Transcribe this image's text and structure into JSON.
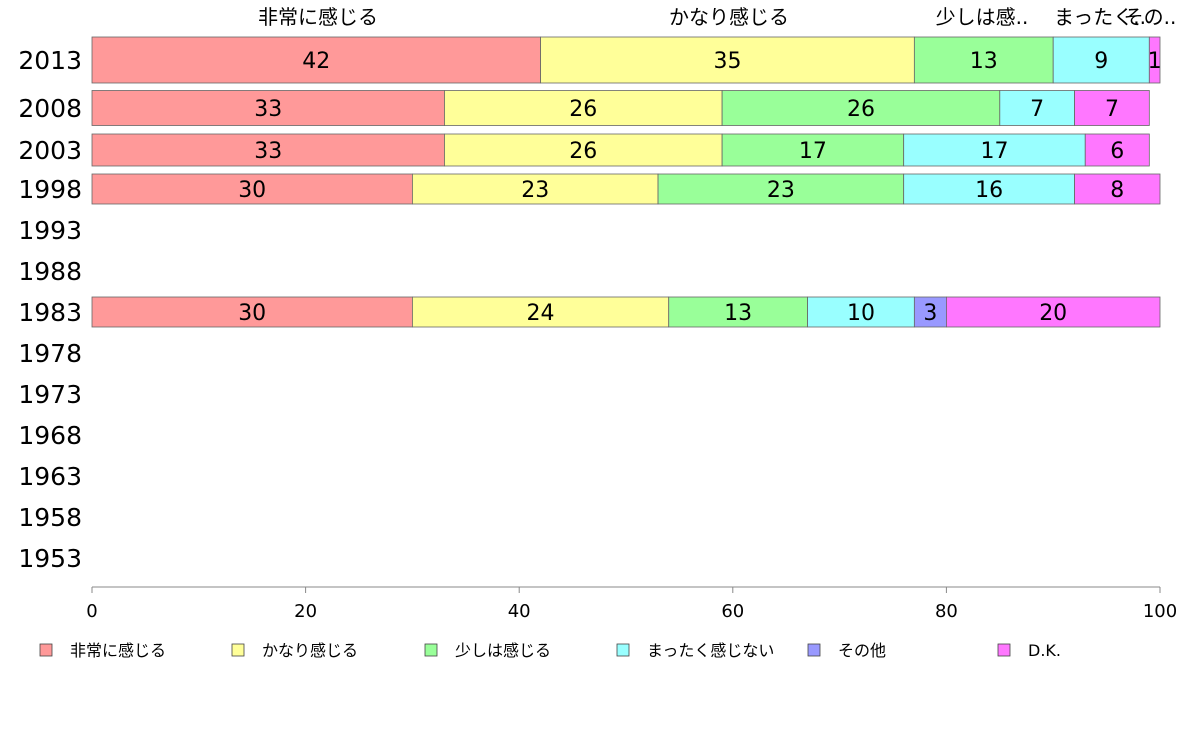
{
  "chart_data": {
    "type": "bar",
    "orientation": "horizontal",
    "stacked": true,
    "categories": [
      "2013",
      "2008",
      "2003",
      "1998",
      "1993",
      "1988",
      "1983",
      "1978",
      "1973",
      "1968",
      "1963",
      "1958",
      "1953"
    ],
    "series": [
      {
        "name": "非常に感じる",
        "color": "#ff9999",
        "values": [
          42,
          33,
          33,
          30,
          null,
          null,
          30,
          null,
          null,
          null,
          null,
          null,
          null
        ]
      },
      {
        "name": "かなり感じる",
        "color": "#ffff99",
        "values": [
          35,
          26,
          26,
          23,
          null,
          null,
          24,
          null,
          null,
          null,
          null,
          null,
          null
        ]
      },
      {
        "name": "少しは感じる",
        "color": "#99ff99",
        "values": [
          13,
          26,
          17,
          23,
          null,
          null,
          13,
          null,
          null,
          null,
          null,
          null,
          null
        ]
      },
      {
        "name": "まったく感じない",
        "color": "#99ffff",
        "values": [
          9,
          7,
          17,
          16,
          null,
          null,
          10,
          null,
          null,
          null,
          null,
          null,
          null
        ]
      },
      {
        "name": "その他",
        "color": "#9999ff",
        "values": [
          0,
          0,
          0,
          0,
          null,
          null,
          3,
          null,
          null,
          null,
          null,
          null,
          null
        ]
      },
      {
        "name": "D.K.",
        "color": "#ff77ff",
        "values": [
          1,
          7,
          6,
          8,
          null,
          null,
          20,
          null,
          null,
          null,
          null,
          null,
          null
        ]
      }
    ],
    "top_labels": [
      "非常に感じる",
      "かなり感じる",
      "少しは感..",
      "まったく..",
      "その.."
    ],
    "xticks": [
      "0",
      "20",
      "40",
      "60",
      "80",
      "100"
    ],
    "xlim": [
      0,
      100
    ],
    "legend_position": "bottom",
    "grid": false
  }
}
